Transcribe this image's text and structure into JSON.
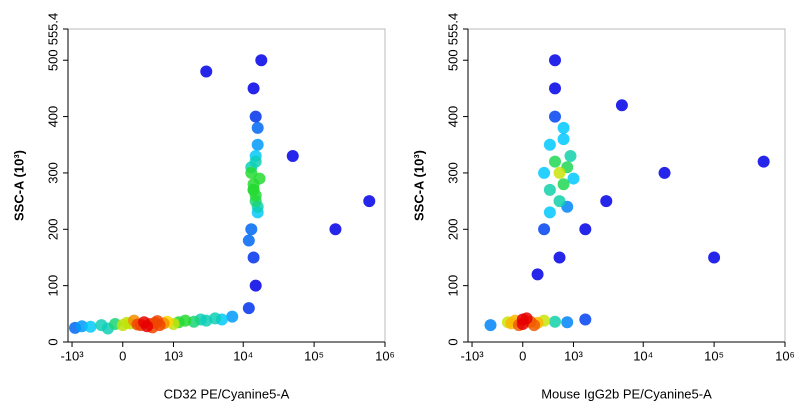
{
  "chart_data": [
    {
      "type": "scatter",
      "xlabel": "CD32 PE/Cyanine5-A",
      "ylabel": "SSC-A (10³)",
      "x_scale": "asinh",
      "xlim": [
        -1150,
        1000000
      ],
      "ylim": [
        0,
        555.4
      ],
      "xticks": [
        {
          "value": -1000,
          "label": "-10³"
        },
        0,
        {
          "value": 1000,
          "label": "10³"
        },
        {
          "value": 10000,
          "label": "10⁴"
        },
        {
          "value": 100000,
          "label": "10⁵"
        },
        {
          "value": 1000000,
          "label": "10⁶"
        }
      ],
      "yticks": [
        0,
        100,
        200,
        300,
        400,
        500,
        555.4
      ],
      "x": [
        -900,
        -700,
        -500,
        -300,
        -100,
        0,
        100,
        200,
        300,
        400,
        500,
        600,
        700,
        800,
        1000,
        1200,
        1500,
        2000,
        2500,
        3000,
        4000,
        5000,
        7000,
        -200,
        150,
        350,
        550,
        250,
        450,
        50,
        12000,
        15000,
        14000,
        13000,
        16000,
        15000,
        14000,
        17000,
        13000,
        15000,
        16000,
        14000,
        15000,
        13000,
        16000,
        15000,
        14000,
        18000,
        12000,
        15000,
        14000,
        16000,
        50000,
        200000,
        3000,
        600000
      ],
      "y": [
        25,
        28,
        27,
        30,
        32,
        30,
        33,
        31,
        35,
        32,
        34,
        30,
        33,
        36,
        32,
        35,
        38,
        36,
        40,
        38,
        42,
        40,
        45,
        24,
        38,
        28,
        37,
        30,
        26,
        34,
        60,
        100,
        150,
        200,
        230,
        250,
        270,
        290,
        310,
        330,
        350,
        280,
        260,
        300,
        240,
        400,
        450,
        500,
        180,
        320,
        270,
        380,
        330,
        200,
        480,
        250
      ]
    },
    {
      "type": "scatter",
      "xlabel": "Mouse IgG2b PE/Cyanine5-A",
      "ylabel": "SSC-A (10³)",
      "x_scale": "asinh",
      "xlim": [
        -1150,
        1000000
      ],
      "ylim": [
        0,
        555.4
      ],
      "xticks": [
        {
          "value": -1000,
          "label": "-10³"
        },
        0,
        {
          "value": 1000,
          "label": "10³"
        },
        {
          "value": 10000,
          "label": "10⁴"
        },
        {
          "value": 100000,
          "label": "10⁵"
        },
        {
          "value": 1000000,
          "label": "10⁶"
        }
      ],
      "yticks": [
        0,
        100,
        200,
        300,
        400,
        500,
        555.4
      ],
      "x": [
        -200,
        -100,
        0,
        100,
        200,
        0,
        -50,
        50,
        150,
        -150,
        300,
        500,
        800,
        1500,
        -500,
        300,
        500,
        700,
        400,
        600,
        800,
        500,
        300,
        900,
        600,
        400,
        700,
        500,
        200,
        1000,
        600,
        800,
        400,
        500,
        700,
        1500,
        3000,
        20000,
        100000,
        5000,
        500000
      ],
      "y": [
        35,
        38,
        32,
        36,
        34,
        40,
        30,
        42,
        30,
        33,
        38,
        36,
        35,
        40,
        30,
        300,
        320,
        280,
        350,
        250,
        310,
        400,
        200,
        330,
        150,
        270,
        360,
        450,
        120,
        290,
        300,
        240,
        230,
        500,
        380,
        200,
        250,
        300,
        150,
        420,
        320
      ]
    }
  ]
}
